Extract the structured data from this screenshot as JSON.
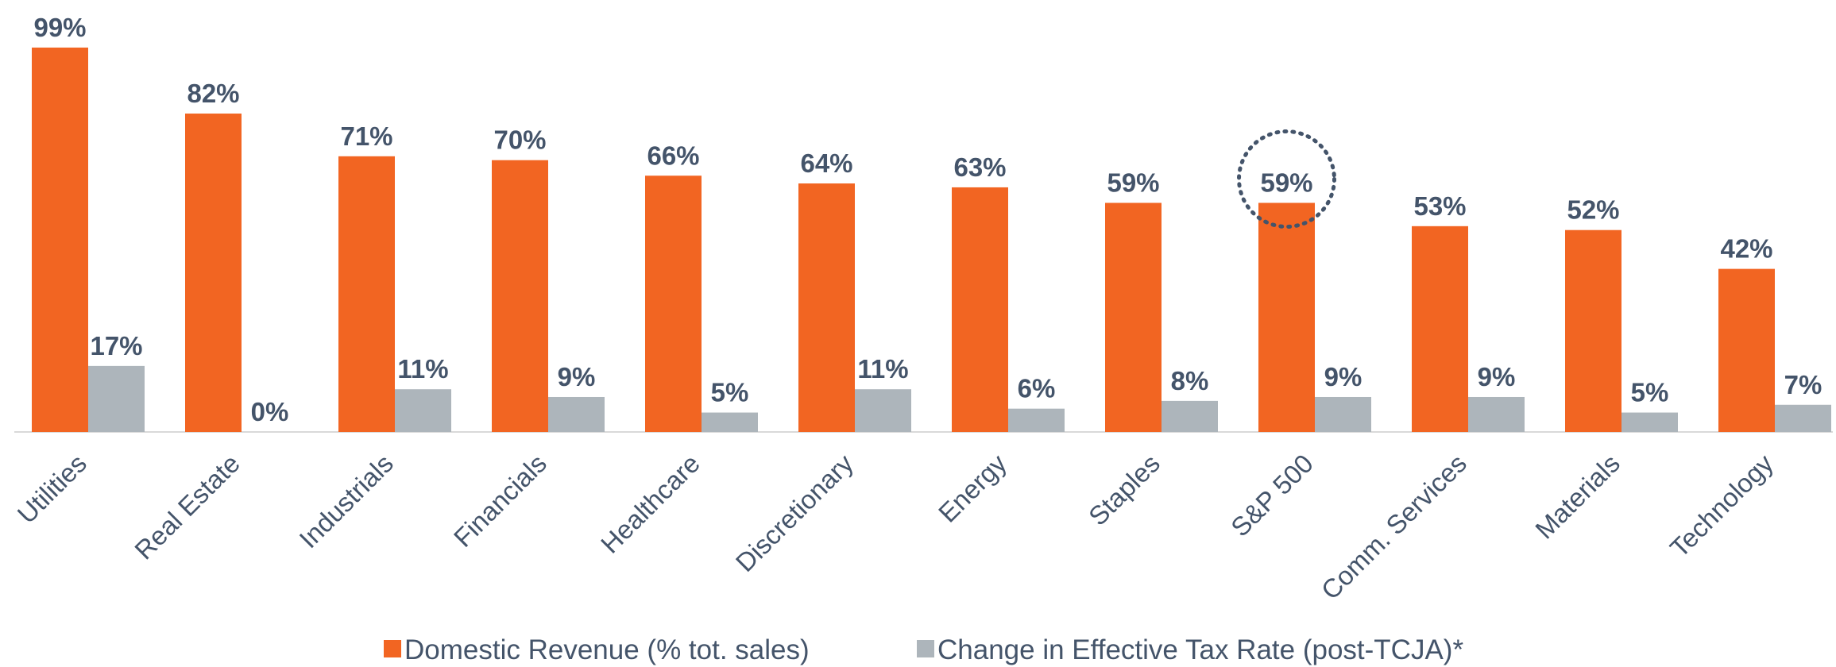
{
  "chart_data": {
    "type": "bar",
    "categories": [
      "Utilities",
      "Real Estate",
      "Industrials",
      "Financials",
      "Healthcare",
      "Discretionary",
      "Energy",
      "Staples",
      "S&P 500",
      "Comm. Services",
      "Materials",
      "Technology"
    ],
    "series": [
      {
        "name": "Domestic Revenue (% tot. sales)",
        "color": "#f26522",
        "values": [
          99,
          82,
          71,
          70,
          66,
          64,
          63,
          59,
          59,
          53,
          52,
          42
        ],
        "value_labels": [
          "99%",
          "82%",
          "71%",
          "70%",
          "66%",
          "64%",
          "63%",
          "59%",
          "59%",
          "53%",
          "52%",
          "42%"
        ]
      },
      {
        "name": "Change in Effective Tax Rate (post-TCJA)*",
        "color": "#adb5bb",
        "values": [
          17,
          0,
          11,
          9,
          5,
          11,
          6,
          8,
          9,
          9,
          5,
          7
        ],
        "value_labels": [
          "17%",
          "0%",
          "11%",
          "9%",
          "5%",
          "11%",
          "6%",
          "8%",
          "9%",
          "9%",
          "5%",
          "7%"
        ]
      }
    ],
    "ylim": [
      0,
      100
    ],
    "highlighted_category": "S&P 500",
    "legend": "bottom"
  }
}
